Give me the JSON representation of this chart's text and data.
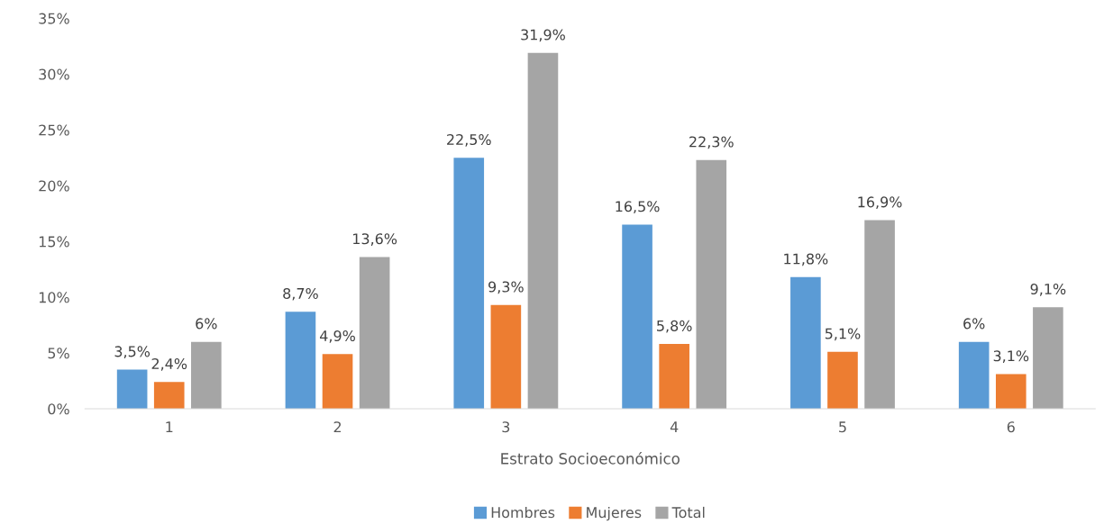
{
  "chart_data": {
    "type": "bar",
    "xlabel": "Estrato Socioeconómico",
    "categories": [
      "1",
      "2",
      "3",
      "4",
      "5",
      "6"
    ],
    "series": [
      {
        "name": "Hombres",
        "color": "#5b9bd5",
        "values": [
          3.5,
          8.7,
          22.5,
          16.5,
          11.8,
          6
        ],
        "value_labels": [
          "3,5%",
          "8,7%",
          "22,5%",
          "16,5%",
          "11,8%",
          "6%"
        ]
      },
      {
        "name": "Mujeres",
        "color": "#ed7d31",
        "values": [
          2.4,
          4.9,
          9.3,
          5.8,
          5.1,
          3.1
        ],
        "value_labels": [
          "2,4%",
          "4,9%",
          "9,3%",
          "5,8%",
          "5,1%",
          "3,1%"
        ]
      },
      {
        "name": "Total",
        "color": "#a5a5a5",
        "values": [
          6,
          13.6,
          31.9,
          22.3,
          16.9,
          9.1
        ],
        "value_labels": [
          "6%",
          "13,6%",
          "31,9%",
          "22,3%",
          "16,9%",
          "9,1%"
        ]
      }
    ],
    "ylim": [
      0,
      35
    ],
    "yticks": [
      {
        "value": 0,
        "label": "0%"
      },
      {
        "value": 5,
        "label": "5%"
      },
      {
        "value": 10,
        "label": "10%"
      },
      {
        "value": 15,
        "label": "15%"
      },
      {
        "value": 20,
        "label": "20%"
      },
      {
        "value": 25,
        "label": "25%"
      },
      {
        "value": 30,
        "label": "30%"
      },
      {
        "value": 35,
        "label": "35%"
      }
    ],
    "grid": false,
    "legend": "bottom"
  }
}
